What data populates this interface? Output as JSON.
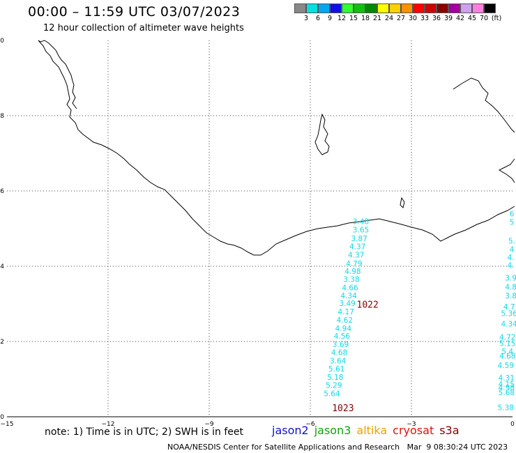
{
  "header": {
    "title": "00:00 – 11:59 UTC 03/07/2023",
    "subtitle": "12 hour collection of altimeter wave heights"
  },
  "legend": {
    "colors": [
      "#888888",
      "#00e0e0",
      "#00a8f0",
      "#1010e8",
      "#30ff30",
      "#10c010",
      "#008800",
      "#ffff00",
      "#ffd000",
      "#ff9000",
      "#ff0000",
      "#d00000",
      "#880000",
      "#a000a0",
      "#d0a0f0",
      "#ff80e0",
      "#000000"
    ],
    "labels": [
      "3",
      "6",
      "9",
      "12",
      "15",
      "18",
      "21",
      "24",
      "27",
      "30",
      "33",
      "36",
      "39",
      "42",
      "45",
      "70"
    ],
    "unit": "(ft)"
  },
  "axes": {
    "x_ticks": [
      "−15",
      "−12",
      "−9",
      "−6",
      "−3",
      "0"
    ],
    "y_ticks": [
      "0",
      "2",
      "4",
      "6",
      "8",
      "10"
    ]
  },
  "chart_data": {
    "type": "scatter",
    "xlim": [
      -15,
      0
    ],
    "ylim": [
      0,
      10
    ],
    "grid": true,
    "series": [
      {
        "name": "jason3",
        "points": [
          {
            "x": -4.5,
            "y": 5.12,
            "label": "3.48"
          }
        ]
      },
      {
        "name": "cryosat",
        "points": [
          {
            "x": -4.5,
            "y": 4.9,
            "label": "3.65"
          },
          {
            "x": -4.55,
            "y": 4.67,
            "label": "3.87"
          },
          {
            "x": -4.6,
            "y": 4.45,
            "label": "4.37"
          },
          {
            "x": -4.64,
            "y": 4.23,
            "label": "4.37"
          },
          {
            "x": -4.7,
            "y": 4.0,
            "label": "4.79"
          },
          {
            "x": -4.74,
            "y": 3.8,
            "label": "4.98"
          },
          {
            "x": -4.78,
            "y": 3.58,
            "label": "3.38"
          },
          {
            "x": -4.82,
            "y": 3.36,
            "label": "4.66"
          },
          {
            "x": -4.86,
            "y": 3.15,
            "label": "4.34"
          },
          {
            "x": -4.9,
            "y": 2.94,
            "label": "3.49"
          },
          {
            "x": -4.94,
            "y": 2.72,
            "label": "4.17"
          },
          {
            "x": -4.98,
            "y": 2.5,
            "label": "4.62"
          },
          {
            "x": -5.02,
            "y": 2.28,
            "label": "4.94"
          },
          {
            "x": -5.06,
            "y": 2.07,
            "label": "4.56"
          },
          {
            "x": -5.1,
            "y": 1.85,
            "label": "3.69"
          },
          {
            "x": -5.14,
            "y": 1.64,
            "label": "4.68"
          },
          {
            "x": -5.18,
            "y": 1.42,
            "label": "3.64"
          },
          {
            "x": -5.22,
            "y": 1.2,
            "label": "5.61"
          },
          {
            "x": -5.26,
            "y": 0.98,
            "label": "5.18"
          },
          {
            "x": -5.3,
            "y": 0.77,
            "label": "5.29"
          },
          {
            "x": -5.36,
            "y": 0.55,
            "label": "5.64"
          },
          {
            "x": -0.02,
            "y": 5.32,
            "label": "6"
          },
          {
            "x": -0.02,
            "y": 5.1,
            "label": "5"
          },
          {
            "x": -0.02,
            "y": 4.6,
            "label": "5."
          },
          {
            "x": -0.02,
            "y": 4.38,
            "label": "4"
          },
          {
            "x": -0.05,
            "y": 4.17,
            "label": "4."
          },
          {
            "x": -0.05,
            "y": 3.95,
            "label": "4."
          },
          {
            "x": -0.05,
            "y": 3.62,
            "label": "3.9"
          },
          {
            "x": -0.05,
            "y": 3.38,
            "label": "4.8"
          },
          {
            "x": -0.05,
            "y": 3.15,
            "label": "3.8"
          },
          {
            "x": -0.1,
            "y": 2.85,
            "label": "4.7"
          },
          {
            "x": -0.1,
            "y": 2.68,
            "label": "5.36"
          },
          {
            "x": -0.1,
            "y": 2.4,
            "label": "4.34"
          },
          {
            "x": -0.15,
            "y": 2.05,
            "label": "4.72"
          },
          {
            "x": -0.15,
            "y": 1.88,
            "label": "5.15"
          },
          {
            "x": -0.15,
            "y": 1.67,
            "label": "5.4"
          },
          {
            "x": -0.15,
            "y": 1.55,
            "label": "4.68"
          },
          {
            "x": -0.2,
            "y": 1.3,
            "label": "4.59"
          },
          {
            "x": -0.18,
            "y": 0.96,
            "label": "4.31"
          },
          {
            "x": -0.18,
            "y": 0.8,
            "label": "4.15"
          },
          {
            "x": -0.18,
            "y": 0.7,
            "label": "4.98"
          },
          {
            "x": -0.18,
            "y": 0.57,
            "label": "5.68"
          },
          {
            "x": -0.2,
            "y": 0.18,
            "label": "5.38"
          }
        ]
      }
    ],
    "annotations": [
      {
        "x": -4.3,
        "y": 2.9,
        "label": "1022"
      },
      {
        "x": -5.03,
        "y": 0.15,
        "label": "1023"
      }
    ]
  },
  "footer": {
    "note": "note: 1) Time is in UTC; 2) SWH is in feet",
    "satellites": [
      {
        "name": "jason2",
        "color": "#1010d0"
      },
      {
        "name": "jason3",
        "color": "#10a010"
      },
      {
        "name": "altika",
        "color": "#f0a000"
      },
      {
        "name": "cryosat",
        "color": "#e01010"
      },
      {
        "name": "s3a",
        "color": "#800000"
      }
    ],
    "credit": "NOAA/NESDIS Center for Satellite Applications and Research   Mar  9 08:30:24 UTC 2023"
  }
}
